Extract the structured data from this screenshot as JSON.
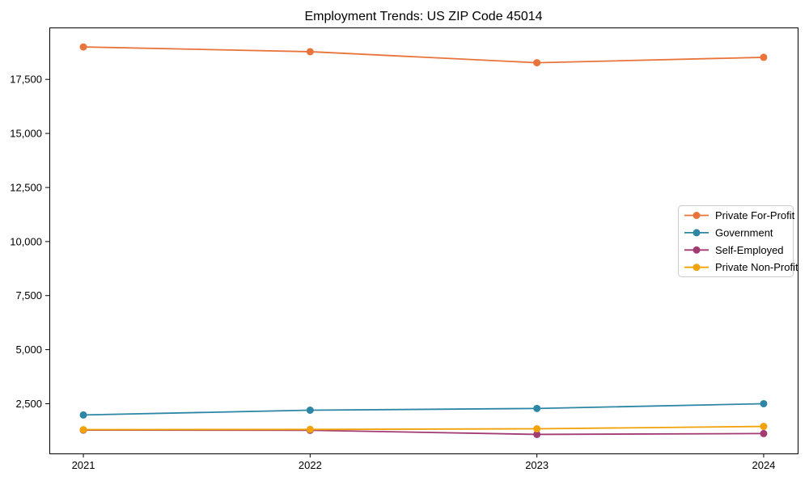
{
  "chart_data": {
    "type": "line",
    "title": "Employment Trends: US ZIP Code 45014",
    "xlabel": "",
    "ylabel": "",
    "x": [
      2021,
      2022,
      2023,
      2024
    ],
    "x_tick_labels": [
      "2021",
      "2022",
      "2023",
      "2024"
    ],
    "y_ticks": [
      2500,
      5000,
      7500,
      10000,
      12500,
      15000,
      17500
    ],
    "y_tick_labels": [
      "2,500",
      "5,000",
      "7,500",
      "10,000",
      "12,500",
      "15,000",
      "17,500"
    ],
    "xlim": [
      2020.85,
      2024.15
    ],
    "ylim": [
      200,
      19900
    ],
    "grid": false,
    "frame": true,
    "series": [
      {
        "name": "Private For-Profit",
        "color": "#e8743b",
        "values": [
          19000,
          18780,
          18270,
          18520
        ]
      },
      {
        "name": "Government",
        "color": "#2e86a5",
        "values": [
          1980,
          2200,
          2280,
          2500
        ]
      },
      {
        "name": "Self-Employed",
        "color": "#a23b72",
        "values": [
          1280,
          1270,
          1080,
          1120
        ]
      },
      {
        "name": "Private Non-Profit",
        "color": "#f1a208",
        "values": [
          1300,
          1310,
          1340,
          1450
        ]
      }
    ],
    "legend": {
      "position": "right-middle",
      "entries": [
        "Private For-Profit",
        "Government",
        "Self-Employed",
        "Private Non-Profit"
      ],
      "border_color": "#cccccc",
      "background": "#ffffff"
    },
    "text_color": "#000000",
    "spine_color": "#000000"
  }
}
